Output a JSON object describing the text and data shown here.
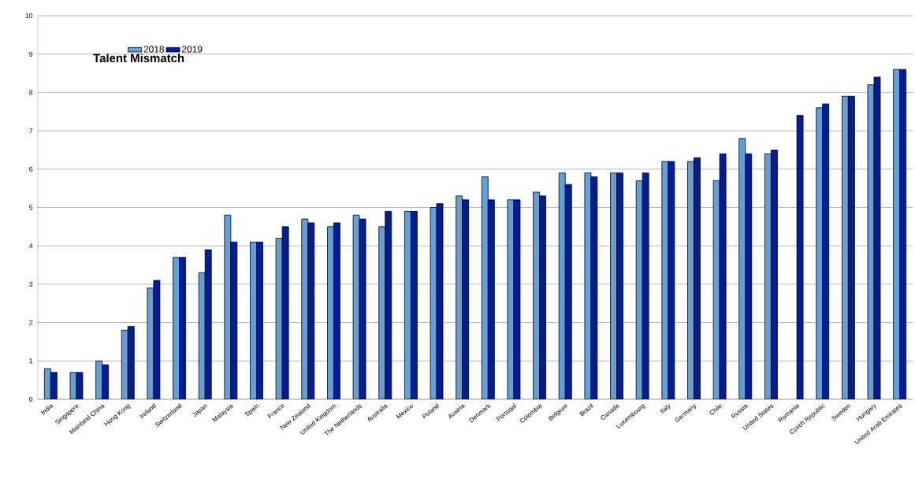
{
  "chart_data": {
    "type": "bar",
    "title": "Talent Mismatch",
    "categories": [
      "India",
      "Singapore",
      "Mainland China",
      "Hong Kong",
      "Ireland",
      "Switzerland",
      "Japan",
      "Malaysia",
      "Spain",
      "France",
      "New Zealand",
      "United Kingdom",
      "The Netherlands",
      "Australia",
      "Mexico",
      "Poland",
      "Austria",
      "Denmark",
      "Portugal",
      "Colombia",
      "Belgium",
      "Brazil",
      "Canada",
      "Luxembourg",
      "Italy",
      "Germany",
      "Chile",
      "Russia",
      "United States",
      "Romania",
      "Czech Republic",
      "Sweden",
      "Hungary",
      "United Arab Emirates"
    ],
    "series": [
      {
        "name": "2018",
        "color": "#62a0dc",
        "values": [
          0.8,
          0.7,
          1.0,
          1.8,
          2.9,
          3.7,
          3.3,
          4.8,
          4.1,
          4.2,
          4.7,
          4.5,
          4.8,
          4.5,
          4.9,
          5.0,
          5.3,
          5.8,
          5.2,
          5.4,
          5.9,
          5.9,
          5.9,
          5.7,
          6.2,
          6.2,
          5.7,
          6.8,
          6.4,
          null,
          7.6,
          7.9,
          8.2,
          8.6
        ]
      },
      {
        "name": "2019",
        "color": "#041c9c",
        "values": [
          0.7,
          0.7,
          0.9,
          1.9,
          3.1,
          3.7,
          3.9,
          4.1,
          4.1,
          4.5,
          4.6,
          4.6,
          4.7,
          4.9,
          4.9,
          5.1,
          5.2,
          5.2,
          5.2,
          5.3,
          5.6,
          5.8,
          5.9,
          5.9,
          6.2,
          6.3,
          6.4,
          6.4,
          6.5,
          7.4,
          7.7,
          7.9,
          8.4,
          8.6
        ]
      }
    ],
    "ylim": [
      0,
      10
    ],
    "yticks": [
      0,
      1,
      2,
      3,
      4,
      5,
      6,
      7,
      8,
      9,
      10
    ],
    "grid": "y",
    "legend": "top left"
  }
}
